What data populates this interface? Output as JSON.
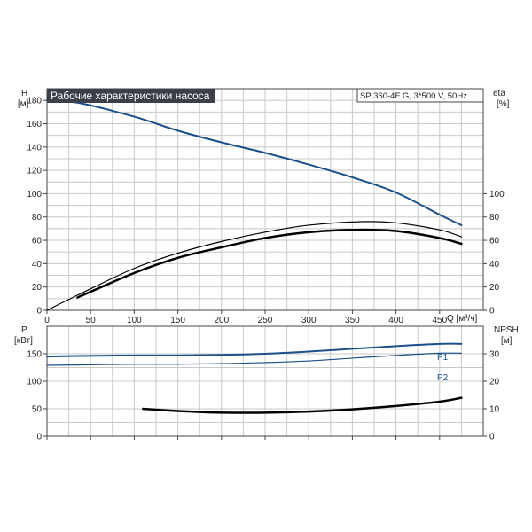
{
  "chart_data": [
    {
      "type": "line",
      "title": "Рабочие характеристики насоса",
      "model": "SP 360-4F G, 3*500 V, 50Hz",
      "xlabel": "Q [м³/ч]",
      "ylabel_left": [
        "H",
        "[м]"
      ],
      "ylabel_right": [
        "eta",
        "[%]"
      ],
      "xlim": [
        0,
        500
      ],
      "ylim": [
        0,
        190
      ],
      "ylim_right": [
        0,
        190
      ],
      "x_ticks": [
        "0",
        "50",
        "100",
        "150",
        "200",
        "250",
        "300",
        "350",
        "400",
        "450"
      ],
      "y_ticks": [
        "0",
        "20",
        "40",
        "60",
        "80",
        "100",
        "120",
        "140",
        "160",
        "180"
      ],
      "y_right_ticks": [
        "0",
        "20",
        "40",
        "60",
        "80",
        "100"
      ],
      "grid": true,
      "series": [
        {
          "axis": "left",
          "color": "#1a4f8a",
          "width": 2,
          "x": [
            0,
            35,
            100,
            150,
            200,
            250,
            300,
            350,
            400,
            450,
            475
          ],
          "y": [
            180,
            178,
            166,
            154,
            144,
            135,
            125,
            114,
            101,
            82,
            73
          ]
        },
        {
          "axis": "right",
          "color": "#000000",
          "width": 1.2,
          "x": [
            0,
            35,
            100,
            150,
            200,
            250,
            300,
            360,
            400,
            450,
            475
          ],
          "y": [
            0,
            13,
            36,
            49,
            59,
            67,
            73,
            76,
            75,
            69,
            63
          ]
        },
        {
          "axis": "right",
          "color": "#000000",
          "width": 2.5,
          "x": [
            35,
            100,
            150,
            200,
            250,
            300,
            350,
            400,
            450,
            475
          ],
          "y": [
            11,
            32,
            45,
            54,
            62,
            67,
            69,
            68,
            62,
            57
          ]
        }
      ]
    },
    {
      "type": "line",
      "ylabel_left": [
        "P",
        "[кВт]"
      ],
      "ylabel_right": [
        "NPSH",
        "[м]"
      ],
      "xlim": [
        0,
        500
      ],
      "ylim": [
        0,
        200
      ],
      "ylim_right": [
        0,
        40
      ],
      "y_ticks": [
        "0",
        "50",
        "100",
        "150"
      ],
      "y_right_ticks": [
        "0",
        "10",
        "20",
        "30"
      ],
      "grid": true,
      "series": [
        {
          "name": "P1",
          "axis": "left",
          "color": "#1a4f8a",
          "width": 2,
          "x": [
            0,
            35,
            100,
            150,
            200,
            250,
            300,
            350,
            400,
            450,
            475
          ],
          "y": [
            145,
            146,
            147,
            147,
            148,
            150,
            154,
            159,
            164,
            168,
            168
          ]
        },
        {
          "name": "P2",
          "axis": "left",
          "color": "#1a4f8a",
          "width": 1.2,
          "x": [
            0,
            50,
            100,
            150,
            200,
            250,
            300,
            350,
            400,
            450,
            475
          ],
          "y": [
            129,
            130,
            131,
            131,
            132,
            134,
            137,
            142,
            147,
            151,
            151
          ]
        },
        {
          "axis": "right",
          "color": "#000000",
          "width": 2.5,
          "x": [
            110,
            150,
            200,
            250,
            300,
            350,
            400,
            450,
            475
          ],
          "y": [
            10,
            9.2,
            8.6,
            8.6,
            9.0,
            9.8,
            11.0,
            12.6,
            14.0
          ]
        }
      ]
    }
  ]
}
